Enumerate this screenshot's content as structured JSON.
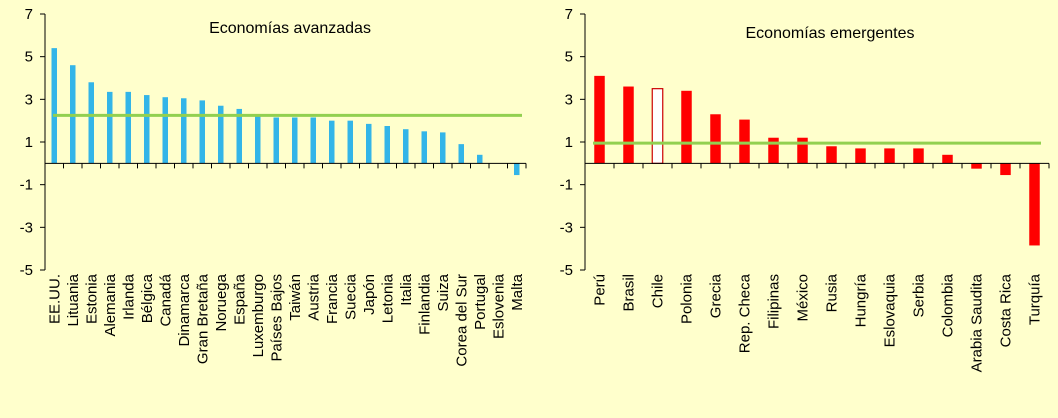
{
  "chart_data": [
    {
      "type": "bar",
      "title": "Economías avanzadas",
      "xlabel": "",
      "ylabel": "",
      "ylim": [
        -5,
        7
      ],
      "yticks": [
        -5,
        -3,
        -1,
        1,
        3,
        5,
        7
      ],
      "bar_color": "#33B5E8",
      "reference_line": {
        "value": 2.25,
        "color": "#92D050"
      },
      "categories": [
        "EE.UU.",
        "Lituania",
        "Estonia",
        "Alemania",
        "Irlanda",
        "Bélgica",
        "Canadá",
        "Dinamarca",
        "Gran Bretaña",
        "Noruega",
        "España",
        "Luxemburgo",
        "Países Bajos",
        "Taiwán",
        "Austria",
        "Francia",
        "Suecia",
        "Japón",
        "Letonia",
        "Italia",
        "Finlandia",
        "Suiza",
        "Corea del Sur",
        "Portugal",
        "Eslovenia",
        "Malta"
      ],
      "values": [
        5.4,
        4.6,
        3.8,
        3.35,
        3.35,
        3.2,
        3.1,
        3.05,
        2.95,
        2.7,
        2.55,
        2.2,
        2.15,
        2.15,
        2.15,
        2.0,
        2.0,
        1.85,
        1.75,
        1.6,
        1.5,
        1.45,
        0.9,
        0.4,
        0.0,
        -0.55
      ],
      "grid": false,
      "legend": "none"
    },
    {
      "type": "bar",
      "title": "Economías emergentes",
      "xlabel": "",
      "ylabel": "",
      "ylim": [
        -5,
        7
      ],
      "yticks": [
        -5,
        -3,
        -1,
        1,
        3,
        5,
        7
      ],
      "bar_color": "#FF0000",
      "highlight": {
        "category": "Chile",
        "style": "hollow",
        "fill": "#FFFFFF",
        "stroke": "#CC0000"
      },
      "reference_line": {
        "value": 0.95,
        "color": "#92D050"
      },
      "categories": [
        "Perú",
        "Brasil",
        "Chile",
        "Polonia",
        "Grecia",
        "Rep. Checa",
        "Filipinas",
        "México",
        "Rusia",
        "Hungría",
        "Eslovaquia",
        "Serbia",
        "Colombia",
        "Arabia Saudita",
        "Costa Rica",
        "Turquía"
      ],
      "values": [
        4.1,
        3.6,
        3.5,
        3.4,
        2.3,
        2.05,
        1.2,
        1.2,
        0.8,
        0.7,
        0.7,
        0.7,
        0.4,
        -0.25,
        -0.55,
        -3.85
      ],
      "grid": false,
      "legend": "none"
    }
  ]
}
